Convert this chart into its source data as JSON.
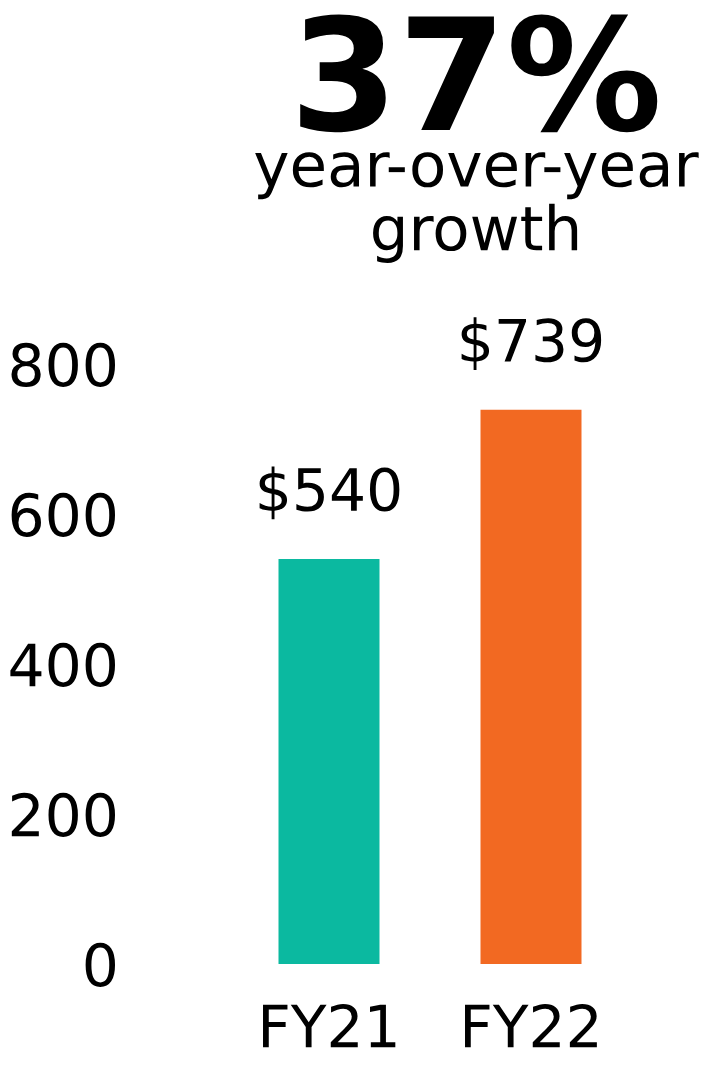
{
  "chart_data": {
    "type": "bar",
    "title": "37%",
    "subtitle": "year-over-year growth",
    "categories": [
      "FY21",
      "FY22"
    ],
    "values": [
      540,
      739
    ],
    "colors": [
      "#0bb9a0",
      "#f26922"
    ],
    "value_labels": [
      "$540",
      "$739"
    ],
    "ylim": [
      0,
      800
    ],
    "yticks": [
      0,
      200,
      400,
      600,
      800
    ]
  }
}
